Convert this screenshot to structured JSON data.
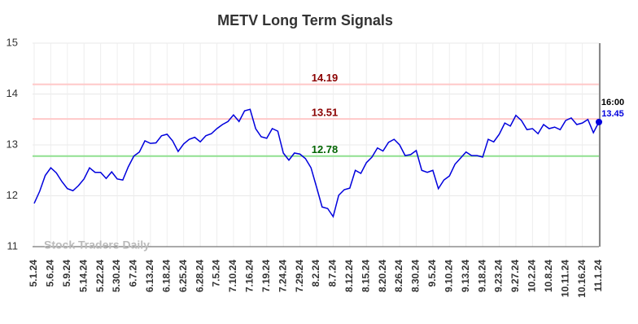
{
  "chart_data": {
    "type": "line",
    "title": "METV Long Term Signals",
    "categories": [
      "5.1.24",
      null,
      null,
      "5.6.24",
      null,
      null,
      "5.9.24",
      null,
      null,
      "5.14.24",
      null,
      null,
      "5.22.24",
      null,
      null,
      "5.30.24",
      null,
      null,
      "6.7.24",
      null,
      null,
      "6.13.24",
      null,
      null,
      "6.18.24",
      null,
      null,
      "6.25.24",
      null,
      null,
      "6.28.24",
      null,
      null,
      "7.5.24",
      null,
      null,
      "7.10.24",
      null,
      null,
      "7.16.24",
      null,
      null,
      "7.19.24",
      null,
      null,
      "7.24.24",
      null,
      null,
      "7.29.24",
      null,
      null,
      "8.2.24",
      null,
      null,
      "8.7.24",
      null,
      null,
      "8.12.24",
      null,
      null,
      "8.15.24",
      null,
      null,
      "8.20.24",
      null,
      null,
      "8.26.24",
      null,
      null,
      "8.30.24",
      null,
      null,
      "9.5.24",
      null,
      null,
      "9.10.24",
      null,
      null,
      "9.13.24",
      null,
      null,
      "9.18.24",
      null,
      null,
      "9.23.24",
      null,
      null,
      "9.27.24",
      null,
      null,
      "10.2.24",
      null,
      null,
      "10.8.24",
      null,
      null,
      "10.11.24",
      null,
      null,
      "10.16.24",
      null,
      null,
      "11.1.24"
    ],
    "values": [
      11.85,
      12.09,
      12.4,
      12.55,
      12.45,
      12.28,
      12.14,
      12.1,
      12.2,
      12.33,
      12.55,
      12.46,
      12.46,
      12.34,
      12.47,
      12.33,
      12.31,
      12.57,
      12.78,
      12.86,
      13.08,
      13.03,
      13.04,
      13.18,
      13.21,
      13.08,
      12.87,
      13.02,
      13.11,
      13.15,
      13.06,
      13.18,
      13.22,
      13.32,
      13.4,
      13.46,
      13.59,
      13.46,
      13.67,
      13.7,
      13.32,
      13.16,
      13.13,
      13.32,
      13.27,
      12.84,
      12.7,
      12.84,
      12.82,
      12.73,
      12.55,
      12.17,
      11.78,
      11.75,
      11.59,
      12.01,
      12.12,
      12.15,
      12.5,
      12.44,
      12.65,
      12.76,
      12.94,
      12.88,
      13.05,
      13.11,
      13.0,
      12.79,
      12.81,
      12.89,
      12.5,
      12.46,
      12.5,
      12.14,
      12.31,
      12.39,
      12.62,
      12.74,
      12.86,
      12.79,
      12.79,
      12.76,
      13.11,
      13.06,
      13.21,
      13.43,
      13.37,
      13.58,
      13.48,
      13.3,
      13.32,
      13.22,
      13.4,
      13.32,
      13.35,
      13.3,
      13.48,
      13.53,
      13.4,
      13.43,
      13.5,
      13.24,
      13.45
    ],
    "color": "#0000dd",
    "ylim": [
      11,
      15
    ],
    "yticks": [
      11,
      12,
      13,
      14,
      15
    ],
    "grid": true,
    "hlines": [
      {
        "value": 14.19,
        "color": "#ffc8c8",
        "label_color": "#8b0000"
      },
      {
        "value": 13.51,
        "color": "#ffc8c8",
        "label_color": "#8b0000"
      },
      {
        "value": 12.78,
        "color": "#90e090",
        "label_color": "#006400"
      }
    ],
    "last_time": "16:00",
    "watermark": "Stock Traders Daily"
  }
}
